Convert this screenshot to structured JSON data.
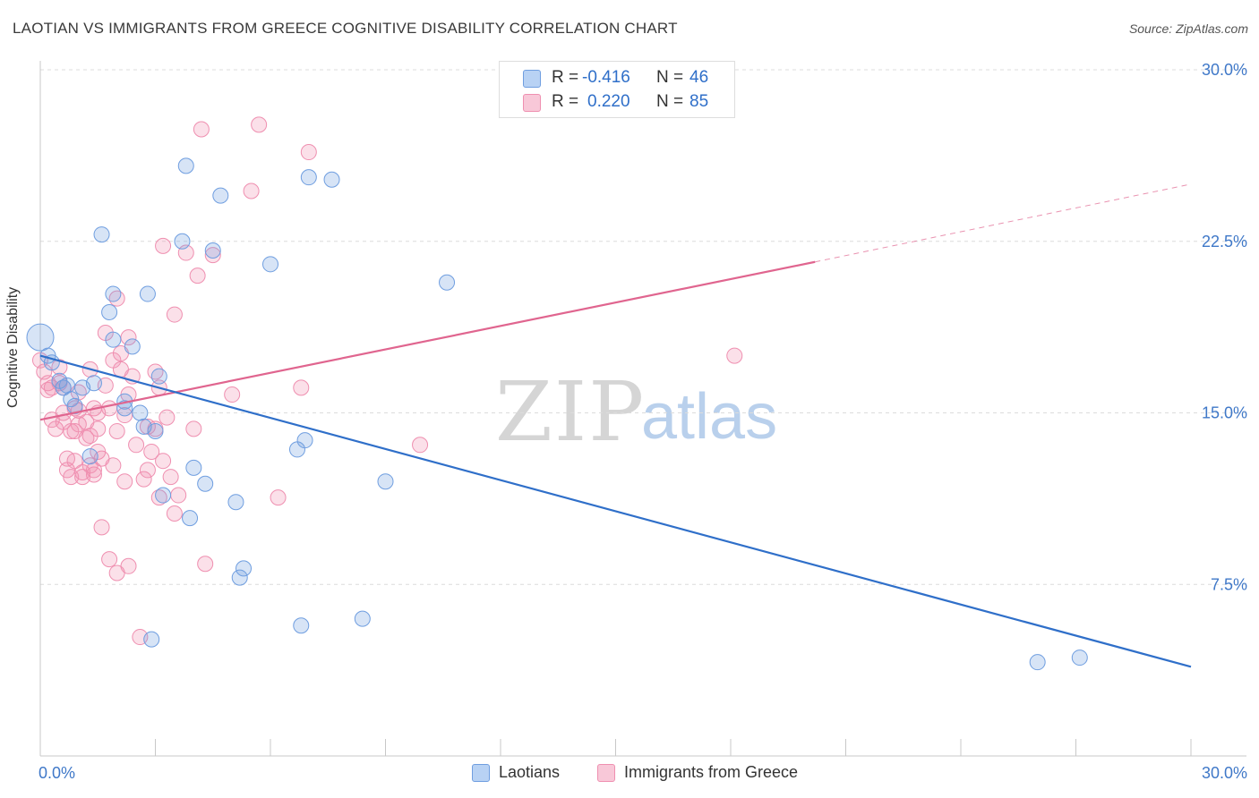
{
  "title": "LAOTIAN VS IMMIGRANTS FROM GREECE COGNITIVE DISABILITY CORRELATION CHART",
  "source": "Source: ZipAtlas.com",
  "legend_top": [
    {
      "r_label": "R =",
      "r_value": "-0.416",
      "n_label": "N =",
      "n_value": "46"
    },
    {
      "r_label": "R =",
      "r_value": "0.220",
      "n_label": "N =",
      "n_value": "85"
    }
  ],
  "watermark": {
    "zip": "ZIP",
    "atlas": "atlas"
  },
  "chart_data": {
    "type": "scatter",
    "title": "LAOTIAN VS IMMIGRANTS FROM GREECE COGNITIVE DISABILITY CORRELATION CHART",
    "xlabel": "",
    "ylabel": "Cognitive Disability",
    "xlim": [
      0,
      30
    ],
    "ylim": [
      0,
      30
    ],
    "x_tick_labels": [
      "0.0%",
      "30.0%"
    ],
    "y_ticks": [
      7.5,
      15.0,
      22.5,
      30.0
    ],
    "y_tick_labels": [
      "7.5%",
      "15.0%",
      "22.5%",
      "30.0%"
    ],
    "grid": "horizontal dashed",
    "legend_position": "top-center and bottom",
    "colors": {
      "laotians": "#6f9ee0",
      "greece": "#ef8fb0",
      "laotians_line": "#2f6fc9",
      "greece_line": "#e0658f"
    },
    "series": [
      {
        "name": "Laotians",
        "r": -0.416,
        "n": 46,
        "trend": {
          "x": [
            0.0,
            30.0
          ],
          "y": [
            17.5,
            3.9
          ]
        },
        "points": [
          [
            0.0,
            18.3
          ],
          [
            0.2,
            17.5
          ],
          [
            0.3,
            17.2
          ],
          [
            0.5,
            16.4
          ],
          [
            0.6,
            16.1
          ],
          [
            0.8,
            15.6
          ],
          [
            0.9,
            15.3
          ],
          [
            1.1,
            16.1
          ],
          [
            1.3,
            13.1
          ],
          [
            1.4,
            16.3
          ],
          [
            1.6,
            22.8
          ],
          [
            1.8,
            19.4
          ],
          [
            1.9,
            20.2
          ],
          [
            1.9,
            18.2
          ],
          [
            2.2,
            15.5
          ],
          [
            2.2,
            15.2
          ],
          [
            2.4,
            17.9
          ],
          [
            2.6,
            15.0
          ],
          [
            2.7,
            14.4
          ],
          [
            2.8,
            20.2
          ],
          [
            3.0,
            14.2
          ],
          [
            3.1,
            16.6
          ],
          [
            3.2,
            11.4
          ],
          [
            3.7,
            22.5
          ],
          [
            3.8,
            25.8
          ],
          [
            3.9,
            10.4
          ],
          [
            4.0,
            12.6
          ],
          [
            4.3,
            11.9
          ],
          [
            4.5,
            22.1
          ],
          [
            4.7,
            24.5
          ],
          [
            5.1,
            11.1
          ],
          [
            5.2,
            7.8
          ],
          [
            5.3,
            8.2
          ],
          [
            6.0,
            21.5
          ],
          [
            6.7,
            13.4
          ],
          [
            6.8,
            5.7
          ],
          [
            6.9,
            13.8
          ],
          [
            7.0,
            25.3
          ],
          [
            7.6,
            25.2
          ],
          [
            8.4,
            6.0
          ],
          [
            9.0,
            12.0
          ],
          [
            10.6,
            20.7
          ],
          [
            26.0,
            4.1
          ],
          [
            27.1,
            4.3
          ],
          [
            2.9,
            5.1
          ],
          [
            0.7,
            16.2
          ]
        ]
      },
      {
        "name": "Immigrants from Greece",
        "r": 0.22,
        "n": 85,
        "trend": {
          "x": [
            0.0,
            20.2
          ],
          "y": [
            14.7,
            21.6
          ]
        },
        "trend_dashed": {
          "x": [
            20.2,
            30.0
          ],
          "y": [
            21.6,
            25.0
          ]
        },
        "points": [
          [
            0.0,
            17.3
          ],
          [
            0.1,
            16.8
          ],
          [
            0.2,
            16.3
          ],
          [
            0.2,
            16.0
          ],
          [
            0.3,
            14.7
          ],
          [
            0.4,
            14.3
          ],
          [
            0.5,
            17.0
          ],
          [
            0.5,
            16.3
          ],
          [
            0.6,
            16.1
          ],
          [
            0.6,
            15.0
          ],
          [
            0.6,
            14.6
          ],
          [
            0.7,
            13.0
          ],
          [
            0.7,
            12.5
          ],
          [
            0.8,
            14.2
          ],
          [
            0.8,
            12.2
          ],
          [
            0.9,
            15.2
          ],
          [
            0.9,
            14.2
          ],
          [
            1.0,
            15.9
          ],
          [
            1.0,
            15.1
          ],
          [
            1.0,
            14.5
          ],
          [
            1.1,
            12.4
          ],
          [
            1.1,
            12.2
          ],
          [
            1.2,
            14.6
          ],
          [
            1.2,
            13.9
          ],
          [
            1.3,
            16.9
          ],
          [
            1.3,
            14.0
          ],
          [
            1.3,
            12.7
          ],
          [
            1.4,
            12.5
          ],
          [
            1.4,
            12.3
          ],
          [
            1.5,
            15.0
          ],
          [
            1.5,
            14.3
          ],
          [
            1.5,
            13.3
          ],
          [
            1.6,
            13.0
          ],
          [
            1.6,
            10.0
          ],
          [
            1.7,
            18.5
          ],
          [
            1.7,
            16.2
          ],
          [
            1.8,
            15.2
          ],
          [
            1.8,
            8.6
          ],
          [
            1.9,
            17.3
          ],
          [
            1.9,
            12.7
          ],
          [
            2.0,
            20.0
          ],
          [
            2.0,
            8.0
          ],
          [
            2.1,
            17.6
          ],
          [
            2.1,
            16.9
          ],
          [
            2.2,
            14.9
          ],
          [
            2.2,
            12.0
          ],
          [
            2.3,
            18.3
          ],
          [
            2.3,
            15.8
          ],
          [
            2.3,
            8.3
          ],
          [
            2.4,
            16.6
          ],
          [
            2.5,
            13.6
          ],
          [
            2.6,
            5.2
          ],
          [
            2.7,
            12.1
          ],
          [
            2.8,
            14.4
          ],
          [
            2.8,
            12.5
          ],
          [
            2.9,
            13.3
          ],
          [
            3.0,
            16.8
          ],
          [
            3.0,
            14.3
          ],
          [
            3.1,
            16.1
          ],
          [
            3.1,
            11.3
          ],
          [
            3.2,
            22.3
          ],
          [
            3.2,
            12.9
          ],
          [
            3.3,
            14.8
          ],
          [
            3.4,
            12.2
          ],
          [
            3.5,
            19.3
          ],
          [
            3.5,
            10.6
          ],
          [
            3.6,
            11.4
          ],
          [
            3.8,
            22.0
          ],
          [
            4.0,
            14.3
          ],
          [
            4.1,
            21.0
          ],
          [
            4.2,
            27.4
          ],
          [
            4.3,
            8.4
          ],
          [
            4.5,
            21.9
          ],
          [
            5.0,
            15.8
          ],
          [
            5.5,
            24.7
          ],
          [
            5.7,
            27.6
          ],
          [
            6.2,
            11.3
          ],
          [
            6.8,
            16.1
          ],
          [
            7.0,
            26.4
          ],
          [
            9.9,
            13.6
          ],
          [
            18.1,
            17.5
          ],
          [
            0.3,
            16.1
          ],
          [
            1.4,
            15.2
          ],
          [
            2.0,
            14.2
          ],
          [
            0.9,
            12.9
          ]
        ]
      }
    ]
  },
  "legend_bottom": [
    {
      "label": "Laotians"
    },
    {
      "label": "Immigrants from Greece"
    }
  ]
}
